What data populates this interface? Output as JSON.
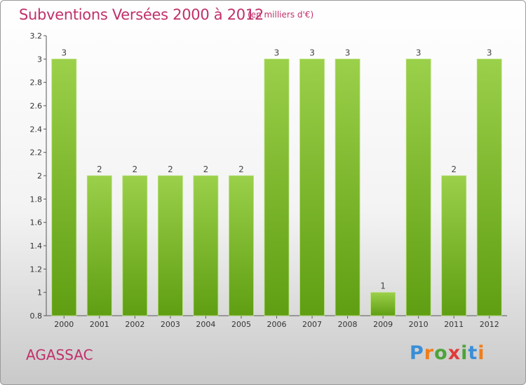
{
  "header": {
    "title": "Subventions Versées 2000 à 2012",
    "unit": "(en milliers d'€)"
  },
  "footer": {
    "commune": "AGASSAC",
    "logo_text": "Proxiti"
  },
  "colors": {
    "title": "#c0306a",
    "bar_top": "#9bd04a",
    "bar_bottom": "#5f9e12"
  },
  "chart_data": {
    "type": "bar",
    "title": "Subventions Versées 2000 à 2012",
    "xlabel": "",
    "ylabel": "",
    "categories": [
      "2000",
      "2001",
      "2002",
      "2003",
      "2004",
      "2005",
      "2006",
      "2007",
      "2008",
      "2009",
      "2010",
      "2011",
      "2012"
    ],
    "values": [
      3,
      2,
      2,
      2,
      2,
      2,
      3,
      3,
      3,
      1,
      3,
      2,
      3
    ],
    "data_labels": [
      "3",
      "2",
      "2",
      "2",
      "2",
      "2",
      "3",
      "3",
      "3",
      "1",
      "3",
      "2",
      "3"
    ],
    "ylim": [
      0.8,
      3.2
    ],
    "yticks": [
      0.8,
      1,
      1.2,
      1.4,
      1.6,
      1.8,
      2,
      2.2,
      2.4,
      2.6,
      2.8,
      3,
      3.2
    ],
    "ytick_labels": [
      "0.8",
      "1",
      "1.2",
      "1.4",
      "1.6",
      "1.8",
      "2",
      "2.2",
      "2.4",
      "2.6",
      "2.8",
      "3",
      "3.2"
    ],
    "grid": false,
    "legend": "none"
  }
}
